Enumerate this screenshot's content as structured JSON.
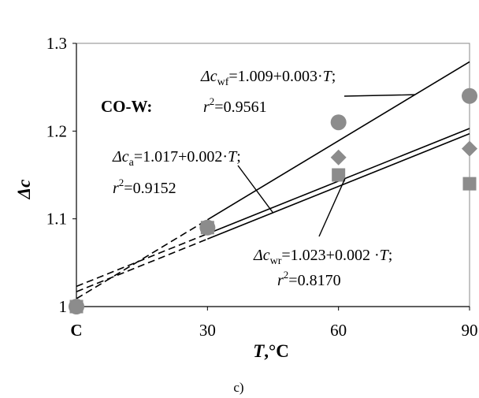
{
  "chart_data": {
    "type": "scatter",
    "panel_title": "CO-W:",
    "caption": "c)",
    "ylabel": "Δc",
    "xlabel": {
      "main": "T",
      "unit": ",°C"
    },
    "xlim": [
      0,
      90
    ],
    "ylim": [
      1.0,
      1.3
    ],
    "x_ticks": [
      {
        "value": 0,
        "label": "C"
      },
      {
        "value": 30,
        "label": "30"
      },
      {
        "value": 60,
        "label": "60"
      },
      {
        "value": 90,
        "label": "90"
      }
    ],
    "y_ticks": [
      {
        "value": 1.0,
        "label": "1"
      },
      {
        "value": 1.1,
        "label": "1.1"
      },
      {
        "value": 1.2,
        "label": "1.2"
      },
      {
        "value": 1.3,
        "label": "1.3"
      }
    ],
    "grid": false,
    "series": [
      {
        "name": "Δc wf",
        "marker": "circle",
        "color": "#8c8c8c",
        "x": [
          0,
          30,
          60,
          90
        ],
        "y": [
          1.0,
          1.09,
          1.21,
          1.24
        ],
        "fit": {
          "intercept": 1.009,
          "slope": 0.003
        }
      },
      {
        "name": "Δc a",
        "marker": "diamond",
        "color": "#8c8c8c",
        "x": [
          0,
          30,
          60,
          90
        ],
        "y": [
          1.0,
          1.09,
          1.17,
          1.18
        ],
        "fit": {
          "intercept": 1.017,
          "slope": 0.002
        }
      },
      {
        "name": "Δc wr",
        "marker": "square",
        "color": "#8c8c8c",
        "x": [
          0,
          30,
          60,
          90
        ],
        "y": [
          1.0,
          1.09,
          1.15,
          1.14
        ],
        "fit": {
          "intercept": 1.023,
          "slope": 0.002
        }
      }
    ],
    "annotations": {
      "wf": {
        "prefix": "Δc",
        "sub": "wf",
        "formula": "=1.009+0.003·",
        "var": "T",
        "end": ";",
        "r_label": "r",
        "r_sup": "2",
        "r_value": "=0.9561"
      },
      "a": {
        "prefix": "Δc",
        "sub": "a",
        "formula": "=1.017+0.002·",
        "var": "T",
        "end": ";",
        "r_label": "r",
        "r_sup": "2",
        "r_value": "=0.9152"
      },
      "wr": {
        "prefix": "Δc",
        "sub": "wr",
        "formula": "=1.023+0.002 ·",
        "var": "T",
        "end": ";",
        "r_label": "r",
        "r_sup": "2",
        "r_value": "=0.8170"
      }
    }
  }
}
